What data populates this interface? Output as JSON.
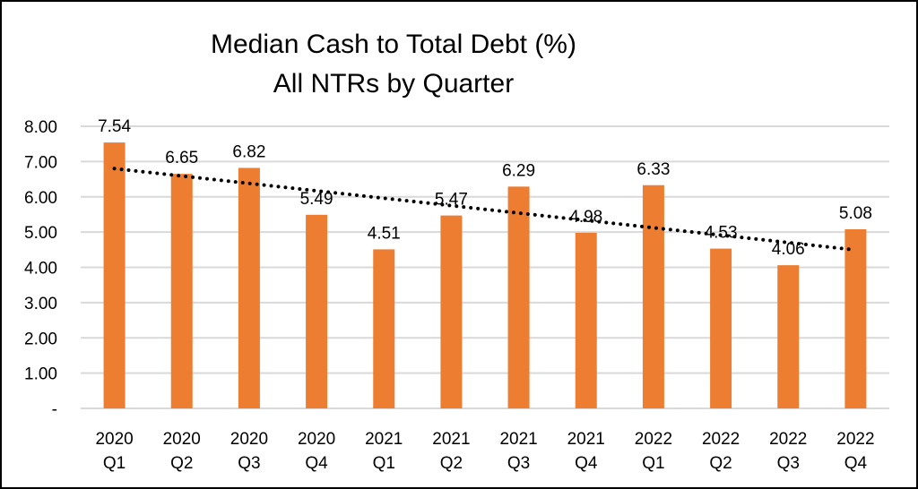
{
  "chart_data": {
    "type": "bar",
    "title": [
      "Median Cash to Total Debt (%)",
      "All NTRs by Quarter"
    ],
    "categories": [
      [
        "2020",
        "Q1"
      ],
      [
        "2020",
        "Q2"
      ],
      [
        "2020",
        "Q3"
      ],
      [
        "2020",
        "Q4"
      ],
      [
        "2021",
        "Q1"
      ],
      [
        "2021",
        "Q2"
      ],
      [
        "2021",
        "Q3"
      ],
      [
        "2021",
        "Q4"
      ],
      [
        "2022",
        "Q1"
      ],
      [
        "2022",
        "Q2"
      ],
      [
        "2022",
        "Q3"
      ],
      [
        "2022",
        "Q4"
      ]
    ],
    "values": [
      7.54,
      6.65,
      6.82,
      5.49,
      4.51,
      5.47,
      6.29,
      4.98,
      6.33,
      4.53,
      4.06,
      5.08
    ],
    "data_labels": [
      "7.54",
      "6.65",
      "6.82",
      "5.49",
      "4.51",
      "5.47",
      "6.29",
      "4.98",
      "6.33",
      "4.53",
      "4.06",
      "5.08"
    ],
    "ylim": [
      0,
      8
    ],
    "yticks": [
      "-",
      "1.00",
      "2.00",
      "3.00",
      "4.00",
      "5.00",
      "6.00",
      "7.00",
      "8.00"
    ],
    "xlabel": "",
    "ylabel": "",
    "grid": true,
    "trendline": {
      "type": "linear",
      "style": "dotted",
      "color": "#000000"
    },
    "colors": {
      "bar": "#ED7D31",
      "grid": "#D9D9D9"
    }
  }
}
